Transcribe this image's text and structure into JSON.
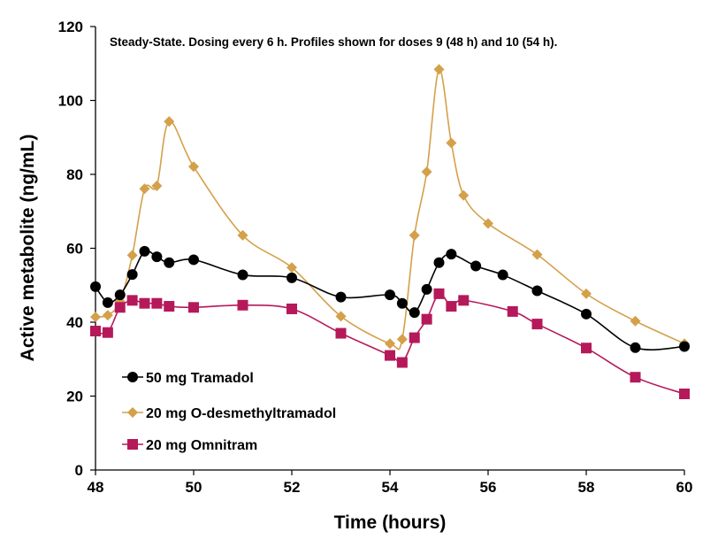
{
  "chart_data": {
    "type": "line",
    "annotation": "Steady-State. Dosing every 6 h. Profiles shown for doses 9 (48 h) and 10 (54 h).",
    "xlabel": "Time (hours)",
    "ylabel": "Active metabolite (ng/mL)",
    "xlim": [
      48,
      60
    ],
    "ylim": [
      0,
      120
    ],
    "xticks": [
      48,
      50,
      52,
      54,
      56,
      58,
      60
    ],
    "yticks": [
      0,
      20,
      40,
      60,
      80,
      100,
      120
    ],
    "grid": false,
    "legend_position": "bottom-left",
    "series": [
      {
        "name": "50 mg Tramadol",
        "color": "#000000",
        "marker": "circle",
        "x": [
          48,
          48.25,
          48.5,
          48.75,
          49,
          49.25,
          49.5,
          50,
          51,
          52,
          53,
          54,
          54.25,
          54.5,
          54.75,
          55,
          55.25,
          55.75,
          56.3,
          57,
          58,
          59,
          60
        ],
        "y": [
          49.6,
          45.3,
          47.4,
          52.9,
          59.2,
          57.7,
          56.1,
          56.9,
          52.8,
          52.0,
          46.8,
          47.4,
          45.1,
          42.6,
          48.9,
          56.1,
          58.4,
          55.2,
          52.8,
          48.5,
          42.2,
          33.1,
          33.4
        ]
      },
      {
        "name": "20 mg O-desmethyltramadol",
        "color": "#D4A04A",
        "marker": "diamond",
        "x": [
          48,
          48.25,
          48.5,
          48.75,
          49,
          49.25,
          49.5,
          50,
          51,
          52,
          53,
          54,
          54.25,
          54.5,
          54.75,
          55,
          55.25,
          55.5,
          56,
          57,
          58,
          59,
          60
        ],
        "y": [
          41.4,
          41.9,
          45.6,
          58.1,
          76.1,
          76.9,
          94.3,
          82.1,
          63.5,
          54.8,
          41.6,
          34.2,
          35.4,
          63.5,
          80.7,
          108.4,
          88.5,
          74.3,
          66.7,
          58.3,
          47.7,
          40.3,
          34.2
        ]
      },
      {
        "name": "20 mg Omnitram",
        "color": "#B5195A",
        "marker": "square",
        "x": [
          48,
          48.25,
          48.5,
          48.75,
          49,
          49.25,
          49.5,
          50,
          51,
          52,
          53,
          54,
          54.25,
          54.5,
          54.75,
          55,
          55.25,
          55.5,
          56.5,
          57,
          58,
          59,
          60
        ],
        "y": [
          37.6,
          37.2,
          44.0,
          45.9,
          45.1,
          45.1,
          44.3,
          44.0,
          44.6,
          43.6,
          37.0,
          31.0,
          29.1,
          35.8,
          40.8,
          47.7,
          44.3,
          45.9,
          42.9,
          39.5,
          33.0,
          25.1,
          20.6
        ]
      }
    ]
  }
}
